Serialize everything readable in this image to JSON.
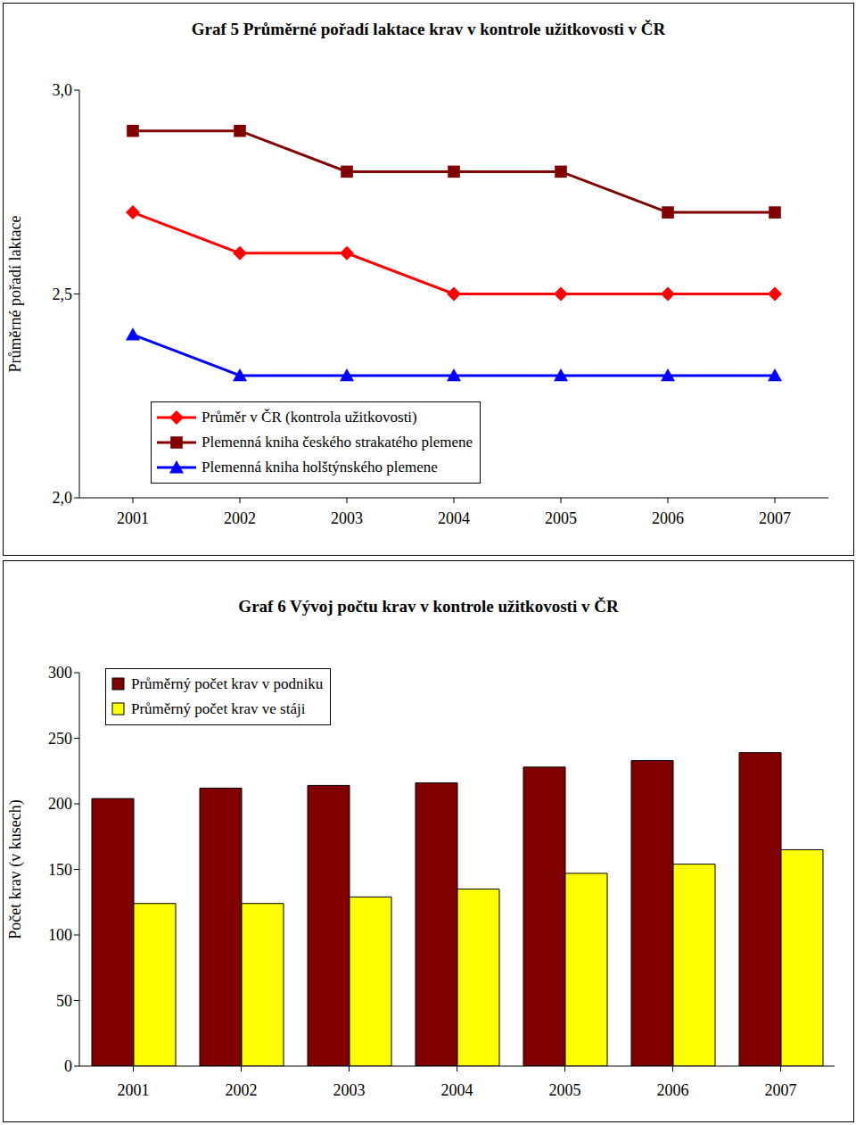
{
  "chart_data": [
    {
      "type": "line",
      "title": "Graf 5 Průměrné pořadí laktace krav v kontrole užitkovosti v ČR",
      "y_label": "Průměrné pořadí laktace",
      "categories": [
        "2001",
        "2002",
        "2003",
        "2004",
        "2005",
        "2006",
        "2007"
      ],
      "series": [
        {
          "name": "Průměr v ČR (kontrola užitkovosti)",
          "color": "#ff0000",
          "marker": "diamond",
          "values": [
            2.7,
            2.6,
            2.6,
            2.5,
            2.5,
            2.5,
            2.5
          ]
        },
        {
          "name": "Plemenná kniha českého strakatého plemene",
          "color": "#800000",
          "marker": "square",
          "values": [
            2.9,
            2.9,
            2.8,
            2.8,
            2.8,
            2.7,
            2.7
          ]
        },
        {
          "name": "Plemenná kniha holštýnského plemene",
          "color": "#0000ff",
          "marker": "triangle",
          "values": [
            2.4,
            2.3,
            2.3,
            2.3,
            2.3,
            2.3,
            2.3
          ]
        }
      ],
      "ylim": [
        2,
        3
      ],
      "yticks": [
        {
          "value": 2,
          "label": "2,0"
        },
        {
          "value": 2.5,
          "label": "2,5"
        },
        {
          "value": 3,
          "label": "3,0"
        }
      ],
      "grid": false,
      "legend": "lower left"
    },
    {
      "type": "bar",
      "title": "Graf 6 Vývoj počtu krav v kontrole užitkovosti v ČR",
      "y_label": "Počet krav (v kusech)",
      "categories": [
        "2001",
        "2002",
        "2003",
        "2004",
        "2005",
        "2006",
        "2007"
      ],
      "series": [
        {
          "name": "Průměrný počet krav v podniku",
          "color": "#800000",
          "values": [
            204,
            212,
            214,
            216,
            228,
            233,
            239
          ]
        },
        {
          "name": "Průměrný počet krav ve stáji",
          "color": "#ffff00",
          "values": [
            124,
            124,
            129,
            135,
            147,
            154,
            165
          ]
        }
      ],
      "ylim": [
        0,
        300
      ],
      "yticks": [
        0,
        50,
        100,
        150,
        200,
        250,
        300
      ],
      "grid": false,
      "legend": "upper left"
    }
  ]
}
